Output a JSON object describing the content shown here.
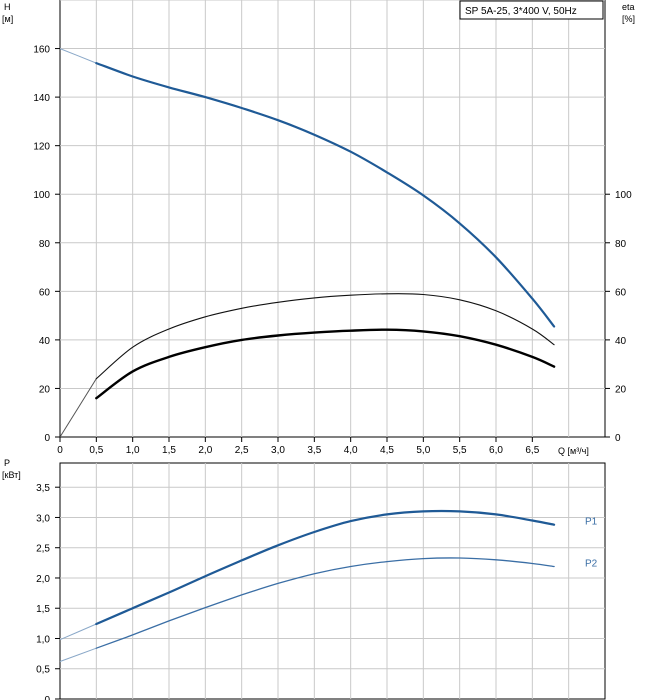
{
  "colors": {
    "curve_blue": "#1f5a96",
    "curve_thin_blue": "#3a6ea5",
    "ext_line": "#8aa8c8",
    "grid": "#c9c9c9",
    "axis": "#000000"
  },
  "chart_data": [
    {
      "type": "line",
      "title": "SP 5A-25, 3*400 V, 50Hz",
      "left_axis": {
        "label": "H",
        "unit": "[м]",
        "ylim": [
          0,
          180
        ],
        "ticks": [
          0,
          20,
          40,
          60,
          80,
          100,
          120,
          140,
          160
        ]
      },
      "right_axis": {
        "label": "eta",
        "unit": "[%]",
        "ylim": [
          0,
          180
        ],
        "ticks": [
          0,
          20,
          40,
          60,
          80,
          100
        ]
      },
      "x_axis": {
        "label": "Q [м³/ч]",
        "xlim": [
          0,
          7.5
        ],
        "ticks": [
          "0",
          "0,5",
          "1,0",
          "1,5",
          "2,0",
          "2,5",
          "3,0",
          "3,5",
          "4,0",
          "4,5",
          "5,0",
          "5,5",
          "6,0",
          "6,5"
        ],
        "tick_values": [
          0,
          0.5,
          1.0,
          1.5,
          2.0,
          2.5,
          3.0,
          3.5,
          4.0,
          4.5,
          5.0,
          5.5,
          6.0,
          6.5
        ]
      },
      "grid": true,
      "series": [
        {
          "role": "head",
          "x": [
            0,
            0.5,
            1.0,
            1.5,
            2.0,
            2.5,
            3.0,
            3.5,
            4.0,
            4.5,
            5.0,
            5.5,
            6.0,
            6.5,
            6.8
          ],
          "y": [
            160,
            154,
            148.5,
            144,
            140,
            135.5,
            130.5,
            124.5,
            117.5,
            109,
            99.5,
            88,
            74,
            57,
            45.5
          ]
        },
        {
          "role": "efficiency_hydraulic",
          "x": [
            0,
            0.5,
            1.0,
            1.5,
            2.0,
            2.5,
            3.0,
            3.5,
            4.0,
            4.5,
            5.0,
            5.5,
            6.0,
            6.5,
            6.8
          ],
          "y": [
            0,
            24,
            37,
            44.5,
            49.5,
            53,
            55.5,
            57.3,
            58.4,
            59,
            58.7,
            56.5,
            52,
            44.5,
            38
          ]
        },
        {
          "role": "efficiency_total",
          "x": [
            0.5,
            1.0,
            1.5,
            2.0,
            2.5,
            3.0,
            3.5,
            4.0,
            4.5,
            5.0,
            5.5,
            6.0,
            6.5,
            6.8
          ],
          "y": [
            16,
            27,
            33,
            37,
            40,
            41.8,
            43,
            43.8,
            44.2,
            43.5,
            41.5,
            38,
            33,
            29
          ]
        }
      ]
    },
    {
      "type": "line",
      "left_axis": {
        "label": "P",
        "unit": "[кВт]",
        "ylim": [
          0,
          3.9
        ],
        "ticks": [
          "0",
          "0,5",
          "1,0",
          "1,5",
          "2,0",
          "2,5",
          "3,0",
          "3,5"
        ],
        "tick_values": [
          0,
          0.5,
          1.0,
          1.5,
          2.0,
          2.5,
          3.0,
          3.5
        ]
      },
      "x_axis": {
        "xlim": [
          0,
          7.5
        ]
      },
      "grid": true,
      "series": [
        {
          "name": "P1",
          "x": [
            0,
            0.5,
            1.0,
            1.5,
            2.0,
            2.5,
            3.0,
            3.5,
            4.0,
            4.5,
            5.0,
            5.5,
            6.0,
            6.5,
            6.8
          ],
          "y": [
            0.98,
            1.24,
            1.5,
            1.76,
            2.03,
            2.29,
            2.54,
            2.76,
            2.94,
            3.05,
            3.1,
            3.1,
            3.05,
            2.95,
            2.88
          ]
        },
        {
          "name": "P2",
          "x": [
            0,
            0.5,
            1.0,
            1.5,
            2.0,
            2.5,
            3.0,
            3.5,
            4.0,
            4.5,
            5.0,
            5.5,
            6.0,
            6.5,
            6.8
          ],
          "y": [
            0.62,
            0.84,
            1.06,
            1.29,
            1.51,
            1.72,
            1.91,
            2.07,
            2.19,
            2.27,
            2.32,
            2.33,
            2.3,
            2.24,
            2.19
          ]
        }
      ]
    }
  ]
}
